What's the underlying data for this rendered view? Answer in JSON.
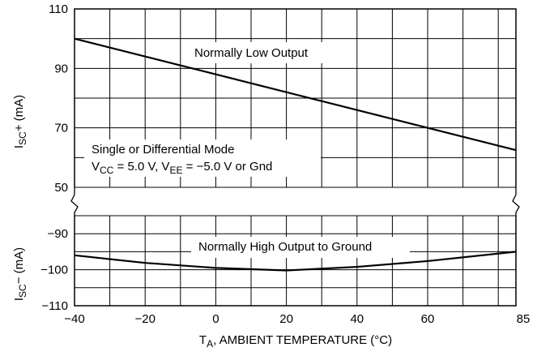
{
  "chart_data": [
    {
      "type": "line",
      "panel": "upper",
      "x": [
        -40,
        85
      ],
      "series": [
        {
          "name": "Normally Low Output",
          "values": [
            100,
            62.5
          ]
        }
      ],
      "ylabel": {
        "main": "I",
        "sub": "SC",
        "tail": "+ (mA)"
      },
      "xlim": [
        -40,
        85
      ],
      "ylim": [
        50,
        110
      ],
      "yticks": [
        "110",
        "90",
        "70",
        "50"
      ],
      "grid": true
    },
    {
      "type": "line",
      "panel": "lower",
      "x": [
        -40,
        -20,
        0,
        20,
        40,
        60,
        85
      ],
      "series": [
        {
          "name": "Normally High Output to Ground",
          "values": [
            -96,
            -98.1,
            -99.5,
            -100.2,
            -99.2,
            -97.6,
            -95
          ]
        }
      ],
      "ylabel": {
        "main": "I",
        "sub": "SC",
        "tail": "− (mA)"
      },
      "xlim": [
        -40,
        85
      ],
      "ylim": [
        -110,
        -85
      ],
      "yticks": [
        "−90",
        "−100",
        "−110"
      ],
      "grid": true
    }
  ],
  "xticks": [
    "−40",
    "−20",
    "0",
    "20",
    "40",
    "60",
    "85"
  ],
  "xlabel": {
    "main": "T",
    "sub": "A",
    "tail": ", AMBIENT TEMPERATURE (°C)"
  },
  "annotations": {
    "mode_line1": "Single or Differential Mode",
    "vcc": "V",
    "vcc_sub": "CC",
    "vcc_rest": " = 5.0 V, V",
    "vee_sub": "EE",
    "vee_rest": " = −5.0 V or Gnd"
  }
}
